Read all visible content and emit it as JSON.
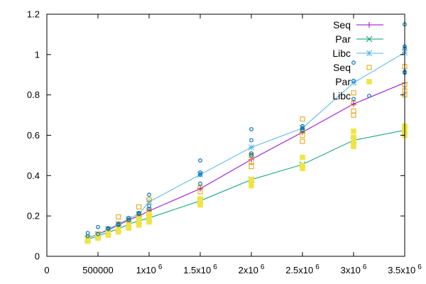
{
  "chart_data": {
    "type": "line",
    "title": "",
    "xlabel": "",
    "ylabel": "",
    "xlim": [
      0,
      3500000
    ],
    "ylim": [
      0,
      1.2
    ],
    "grid": false,
    "legend_position": "top-right",
    "x_ticks": [
      {
        "value": 0,
        "label": "0"
      },
      {
        "value": 500000,
        "label": "500000"
      },
      {
        "value": 1000000,
        "label": "1x10^6"
      },
      {
        "value": 1500000,
        "label": "1.5x10^6"
      },
      {
        "value": 2000000,
        "label": "2x10^6"
      },
      {
        "value": 2500000,
        "label": "2.5x10^6"
      },
      {
        "value": 3000000,
        "label": "3x10^6"
      },
      {
        "value": 3500000,
        "label": "3.5x10^6"
      }
    ],
    "y_ticks": [
      {
        "value": 0,
        "label": "0"
      },
      {
        "value": 0.2,
        "label": "0.2"
      },
      {
        "value": 0.4,
        "label": "0.4"
      },
      {
        "value": 0.6,
        "label": "0.6"
      },
      {
        "value": 0.8,
        "label": "0.8"
      },
      {
        "value": 1.0,
        "label": "1"
      },
      {
        "value": 1.2,
        "label": "1.2"
      }
    ],
    "series": [
      {
        "name": "Seq",
        "style": "line",
        "marker": "plus",
        "color": "#9400d3",
        "points": [
          [
            400000,
            0.09
          ],
          [
            500000,
            0.11
          ],
          [
            600000,
            0.13
          ],
          [
            700000,
            0.155
          ],
          [
            800000,
            0.18
          ],
          [
            900000,
            0.2
          ],
          [
            1000000,
            0.225
          ],
          [
            1500000,
            0.335
          ],
          [
            2000000,
            0.48
          ],
          [
            2500000,
            0.615
          ],
          [
            3000000,
            0.755
          ],
          [
            3500000,
            0.86
          ]
        ]
      },
      {
        "name": "Par",
        "style": "line",
        "marker": "x",
        "color": "#009e73",
        "points": [
          [
            400000,
            0.085
          ],
          [
            500000,
            0.1
          ],
          [
            600000,
            0.12
          ],
          [
            700000,
            0.135
          ],
          [
            800000,
            0.16
          ],
          [
            900000,
            0.175
          ],
          [
            1000000,
            0.19
          ],
          [
            1500000,
            0.275
          ],
          [
            2000000,
            0.38
          ],
          [
            2500000,
            0.455
          ],
          [
            3000000,
            0.575
          ],
          [
            3500000,
            0.625
          ]
        ]
      },
      {
        "name": "Libc",
        "style": "line",
        "marker": "star",
        "color": "#56b4e9",
        "points": [
          [
            400000,
            0.09
          ],
          [
            500000,
            0.11
          ],
          [
            600000,
            0.135
          ],
          [
            700000,
            0.16
          ],
          [
            800000,
            0.185
          ],
          [
            900000,
            0.21
          ],
          [
            1000000,
            0.27
          ],
          [
            1500000,
            0.405
          ],
          [
            2000000,
            0.54
          ],
          [
            2500000,
            0.635
          ],
          [
            3000000,
            0.86
          ],
          [
            3500000,
            1.01
          ]
        ]
      },
      {
        "name": "Seq",
        "style": "points",
        "marker": "open-square",
        "color": "#e69f00",
        "points": [
          [
            400000,
            0.08
          ],
          [
            400000,
            0.09
          ],
          [
            500000,
            0.1
          ],
          [
            500000,
            0.11
          ],
          [
            600000,
            0.12
          ],
          [
            600000,
            0.135
          ],
          [
            700000,
            0.14
          ],
          [
            700000,
            0.16
          ],
          [
            700000,
            0.195
          ],
          [
            800000,
            0.16
          ],
          [
            800000,
            0.18
          ],
          [
            900000,
            0.19
          ],
          [
            900000,
            0.21
          ],
          [
            900000,
            0.245
          ],
          [
            1000000,
            0.21
          ],
          [
            1000000,
            0.23
          ],
          [
            1000000,
            0.28
          ],
          [
            1500000,
            0.32
          ],
          [
            1500000,
            0.34
          ],
          [
            2000000,
            0.445
          ],
          [
            2000000,
            0.47
          ],
          [
            2000000,
            0.5
          ],
          [
            2500000,
            0.57
          ],
          [
            2500000,
            0.6
          ],
          [
            2500000,
            0.62
          ],
          [
            2500000,
            0.68
          ],
          [
            3000000,
            0.7
          ],
          [
            3000000,
            0.72
          ],
          [
            3000000,
            0.76
          ],
          [
            3000000,
            0.81
          ],
          [
            3500000,
            0.8
          ],
          [
            3500000,
            0.82
          ],
          [
            3500000,
            0.85
          ],
          [
            3500000,
            0.94
          ]
        ]
      },
      {
        "name": "Par",
        "style": "points",
        "marker": "filled-square",
        "color": "#f0e442",
        "points": [
          [
            400000,
            0.075
          ],
          [
            400000,
            0.085
          ],
          [
            500000,
            0.09
          ],
          [
            500000,
            0.1
          ],
          [
            600000,
            0.105
          ],
          [
            600000,
            0.12
          ],
          [
            700000,
            0.12
          ],
          [
            700000,
            0.135
          ],
          [
            800000,
            0.14
          ],
          [
            800000,
            0.155
          ],
          [
            900000,
            0.155
          ],
          [
            900000,
            0.17
          ],
          [
            900000,
            0.185
          ],
          [
            1000000,
            0.17
          ],
          [
            1000000,
            0.185
          ],
          [
            1000000,
            0.2
          ],
          [
            1000000,
            0.21
          ],
          [
            1500000,
            0.255
          ],
          [
            1500000,
            0.27
          ],
          [
            1500000,
            0.285
          ],
          [
            2000000,
            0.35
          ],
          [
            2000000,
            0.365
          ],
          [
            2000000,
            0.38
          ],
          [
            2500000,
            0.435
          ],
          [
            2500000,
            0.45
          ],
          [
            2500000,
            0.49
          ],
          [
            3000000,
            0.545
          ],
          [
            3000000,
            0.565
          ],
          [
            3000000,
            0.59
          ],
          [
            3000000,
            0.62
          ],
          [
            3500000,
            0.6
          ],
          [
            3500000,
            0.615
          ],
          [
            3500000,
            0.63
          ],
          [
            3500000,
            0.645
          ]
        ]
      },
      {
        "name": "Libc",
        "style": "points",
        "marker": "open-circle",
        "color": "#0072b2",
        "points": [
          [
            400000,
            0.1
          ],
          [
            400000,
            0.115
          ],
          [
            500000,
            0.11
          ],
          [
            500000,
            0.145
          ],
          [
            600000,
            0.135
          ],
          [
            600000,
            0.14
          ],
          [
            700000,
            0.155
          ],
          [
            700000,
            0.16
          ],
          [
            800000,
            0.18
          ],
          [
            800000,
            0.19
          ],
          [
            900000,
            0.21
          ],
          [
            900000,
            0.215
          ],
          [
            1000000,
            0.235
          ],
          [
            1000000,
            0.25
          ],
          [
            1000000,
            0.305
          ],
          [
            1500000,
            0.36
          ],
          [
            1500000,
            0.405
          ],
          [
            1500000,
            0.415
          ],
          [
            1500000,
            0.475
          ],
          [
            2000000,
            0.5
          ],
          [
            2000000,
            0.51
          ],
          [
            2000000,
            0.575
          ],
          [
            2000000,
            0.63
          ],
          [
            2500000,
            0.625
          ],
          [
            2500000,
            0.635
          ],
          [
            2500000,
            0.645
          ],
          [
            3000000,
            0.78
          ],
          [
            3000000,
            0.87
          ],
          [
            3000000,
            0.96
          ],
          [
            3500000,
            0.91
          ],
          [
            3500000,
            0.915
          ],
          [
            3500000,
            1.03
          ],
          [
            3500000,
            1.04
          ],
          [
            3500000,
            1.15
          ]
        ]
      }
    ]
  }
}
